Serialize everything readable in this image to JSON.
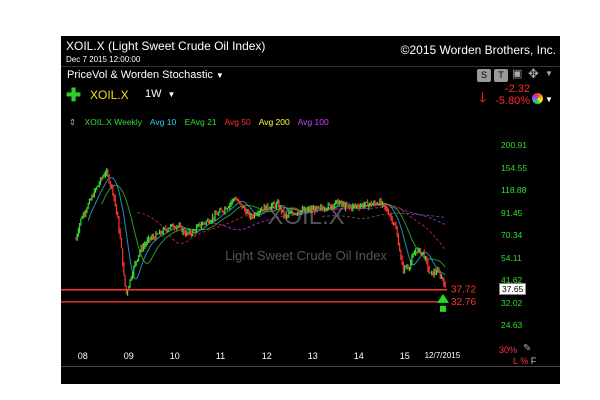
{
  "header": {
    "title": "XOIL.X (Light Sweet Crude Oil Index)",
    "copyright": "©2015 Worden Brothers, Inc.",
    "datetime": "Dec 7 2015 12:00:00"
  },
  "toolbar": {
    "pane_name": "PriceVol & Worden Stochastic",
    "symbol": "XOIL.X",
    "period": "1W",
    "s_button": "S",
    "t_button": "T"
  },
  "quote": {
    "change": "-2.32",
    "change_pct": "-5.80%"
  },
  "legend": [
    {
      "label": "XOIL.X Weekly",
      "color": "#33dd33"
    },
    {
      "label": "Avg 10",
      "color": "#33ccff"
    },
    {
      "label": "EAvg 21",
      "color": "#33dd33"
    },
    {
      "label": "Avg 50",
      "color": "#ff3333"
    },
    {
      "label": "Avg 200",
      "color": "#ffff33"
    },
    {
      "label": "Avg 100",
      "color": "#cc44ff"
    }
  ],
  "watermark": {
    "symbol": "XOIL.X",
    "name": "Light Sweet Crude Oil Index"
  },
  "chart_data": {
    "type": "line",
    "title": "XOIL.X (Light Sweet Crude Oil Index)",
    "x_tick_labels": [
      "08",
      "09",
      "10",
      "11",
      "12",
      "13",
      "14",
      "15",
      "12/7/2015"
    ],
    "y_tick_labels": [
      "200.91",
      "154.55",
      "118.88",
      "91.45",
      "70.34",
      "54.11",
      "41.62",
      "37.65",
      "32.02",
      "24.63"
    ],
    "y_scale": "log",
    "ylim": [
      22,
      240
    ],
    "last_price": 37.65,
    "horizontal_lines": [
      {
        "value": 37.72,
        "label": "37.72",
        "color": "#ff3333"
      },
      {
        "value": 32.76,
        "label": "32.76",
        "color": "#ff3333"
      }
    ],
    "series": [
      {
        "name": "XOIL.X Weekly",
        "color": "#33dd33",
        "x": [
          2007.9,
          2008.0,
          2008.2,
          2008.4,
          2008.55,
          2008.7,
          2008.85,
          2008.95,
          2009.0,
          2009.15,
          2009.3,
          2009.5,
          2009.7,
          2009.9,
          2010.1,
          2010.3,
          2010.45,
          2010.6,
          2010.8,
          2011.0,
          2011.2,
          2011.35,
          2011.5,
          2011.7,
          2011.9,
          2012.1,
          2012.3,
          2012.45,
          2012.6,
          2012.8,
          2013.0,
          2013.2,
          2013.4,
          2013.6,
          2013.8,
          2014.0,
          2014.2,
          2014.4,
          2014.5,
          2014.7,
          2014.85,
          2015.0,
          2015.15,
          2015.3,
          2015.45,
          2015.6,
          2015.75,
          2015.9,
          2015.93
        ],
        "values": [
          68,
          85,
          105,
          130,
          150,
          120,
          72,
          42,
          36,
          48,
          60,
          68,
          72,
          78,
          80,
          72,
          74,
          80,
          85,
          92,
          100,
          110,
          100,
          88,
          96,
          100,
          102,
          88,
          92,
          95,
          96,
          97,
          100,
          105,
          98,
          100,
          102,
          103,
          105,
          93,
          78,
          48,
          50,
          60,
          58,
          45,
          47,
          42,
          37.65
        ]
      }
    ],
    "grid": false,
    "legend_position": "top-left"
  },
  "bottom_bar": {
    "percent": "30%",
    "buttons": [
      "L",
      "%",
      "F"
    ]
  },
  "colors": {
    "background": "#000000",
    "up": "#33dd33",
    "down": "#ff3333",
    "symbol": "#f0e020"
  }
}
